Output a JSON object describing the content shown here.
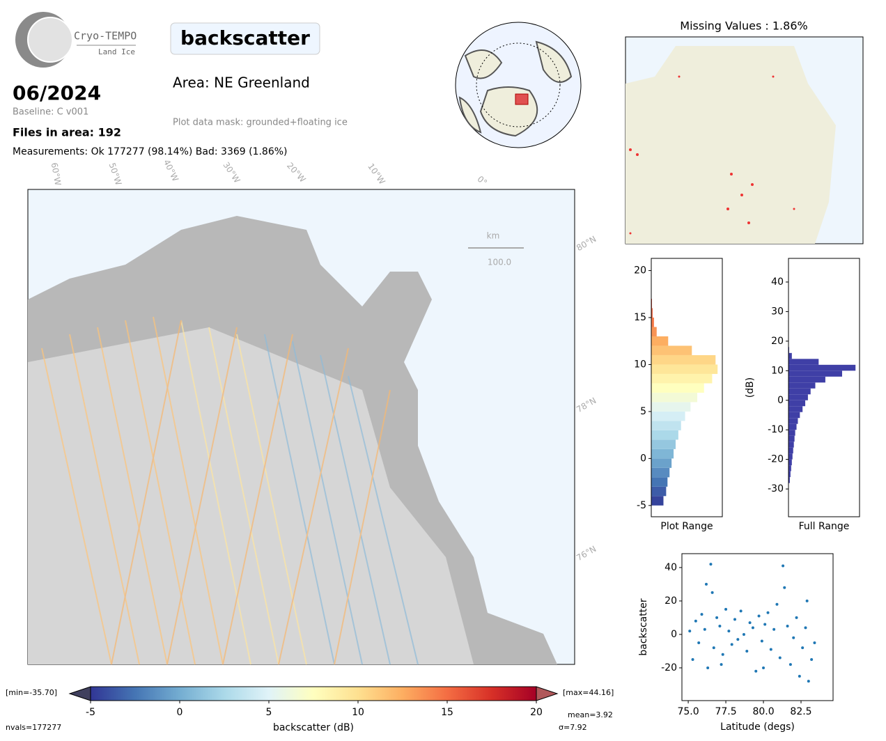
{
  "header": {
    "logo_title": "Cryo-TEMPO",
    "logo_subtitle": "Land Ice",
    "title": "backscatter",
    "area": "Area: NE Greenland",
    "mask": "Plot data mask: grounded+floating ice",
    "date": "06/2024",
    "baseline": "Baseline: C v001",
    "files": "Files in area: 192",
    "measurements": "Measurements: Ok 177277 (98.14%) Bad: 3369 (1.86%)"
  },
  "map": {
    "lon_labels": [
      "60°W",
      "50°W",
      "40°W",
      "30°W",
      "20°W",
      "10°W",
      "0°"
    ],
    "lat_labels": [
      "80°N",
      "78°N",
      "76°N"
    ],
    "scale_unit": "km",
    "scale_length": "100.0"
  },
  "missing": {
    "title": "Missing Values : 1.86%"
  },
  "colorbar": {
    "label": "backscatter (dB)",
    "lim": [
      -5,
      20
    ],
    "ticks": [
      -5,
      0,
      5,
      10,
      15,
      20
    ],
    "colormap": [
      "#313695",
      "#4575b4",
      "#74add1",
      "#abd9e9",
      "#e0f3f8",
      "#ffffbf",
      "#fee090",
      "#fdae61",
      "#f46d43",
      "#d73027",
      "#a50026"
    ],
    "under_color": "#40405e",
    "over_color": "#b0585a",
    "min_label": "[min=-35.70]",
    "max_label": "[max=44.16]",
    "mean": "mean=3.92",
    "sigma": "σ=7.92",
    "nvals": "nvals=177277"
  },
  "chart_data": [
    {
      "type": "histogram",
      "orientation": "horizontal",
      "xlabel": "Plot Range",
      "bins": [
        -5,
        -4,
        -3,
        -2,
        -1,
        0,
        1,
        2,
        3,
        4,
        5,
        6,
        7,
        8,
        9,
        10,
        11,
        12,
        13,
        14,
        15,
        16,
        17
      ],
      "counts": [
        18,
        22,
        24,
        27,
        30,
        33,
        36,
        40,
        44,
        50,
        58,
        68,
        78,
        90,
        98,
        95,
        60,
        25,
        8,
        4,
        2,
        1
      ],
      "xlim": [
        0,
        105
      ],
      "ylim": [
        -6.2,
        21.3
      ],
      "yticks": [
        -5,
        0,
        5,
        10,
        15,
        20
      ],
      "color_by": "colormap"
    },
    {
      "type": "histogram",
      "orientation": "horizontal",
      "xlabel": "Full Range",
      "ylabel": "(dB)",
      "bins": [
        -28,
        -26,
        -24,
        -22,
        -20,
        -18,
        -16,
        -14,
        -12,
        -10,
        -8,
        -6,
        -4,
        -2,
        0,
        2,
        4,
        6,
        8,
        10,
        12,
        14,
        16,
        18
      ],
      "counts": [
        2,
        3,
        4,
        5,
        6,
        7,
        8,
        9,
        10,
        12,
        14,
        17,
        21,
        25,
        29,
        33,
        40,
        55,
        80,
        100,
        45,
        5,
        1
      ],
      "xlim": [
        0,
        106
      ],
      "ylim": [
        -39.4,
        48
      ],
      "yticks": [
        -30,
        -20,
        -10,
        0,
        10,
        20,
        30,
        40
      ],
      "color": "#3f3fa6"
    },
    {
      "type": "scatter",
      "xlabel": "Latitude (degs)",
      "ylabel": "backscatter",
      "color": "#1f77b4",
      "x": [
        75.1,
        75.3,
        75.5,
        75.7,
        75.9,
        76.1,
        76.3,
        76.5,
        76.6,
        76.7,
        76.9,
        77.1,
        77.3,
        77.5,
        77.7,
        77.9,
        78.1,
        78.3,
        78.5,
        78.7,
        78.9,
        79.1,
        79.3,
        79.5,
        79.7,
        79.9,
        80.1,
        80.3,
        80.5,
        80.7,
        80.9,
        81.1,
        81.3,
        81.4,
        81.6,
        81.8,
        82.0,
        82.2,
        82.4,
        82.6,
        82.8,
        83.0,
        83.2,
        83.4,
        76.2,
        77.2,
        80.0,
        82.9
      ],
      "values": [
        2,
        -15,
        8,
        -5,
        12,
        3,
        -20,
        42,
        25,
        -8,
        10,
        5,
        -12,
        15,
        2,
        -6,
        9,
        -3,
        14,
        0,
        -10,
        7,
        4,
        -22,
        11,
        -4,
        6,
        13,
        -9,
        3,
        18,
        -14,
        41,
        28,
        5,
        -18,
        -2,
        10,
        -25,
        -8,
        4,
        -28,
        -15,
        -5,
        30,
        -18,
        -20,
        20
      ],
      "xlim": [
        74.58,
        84.63
      ],
      "xticks": [
        {
          "value": 75,
          "label": "75.0"
        },
        77.5,
        {
          "value": 80,
          "label": "80.0"
        },
        82.5
      ],
      "ylim": [
        -39.6,
        48.3
      ],
      "yticks": [
        -20,
        0,
        20,
        40
      ]
    }
  ]
}
